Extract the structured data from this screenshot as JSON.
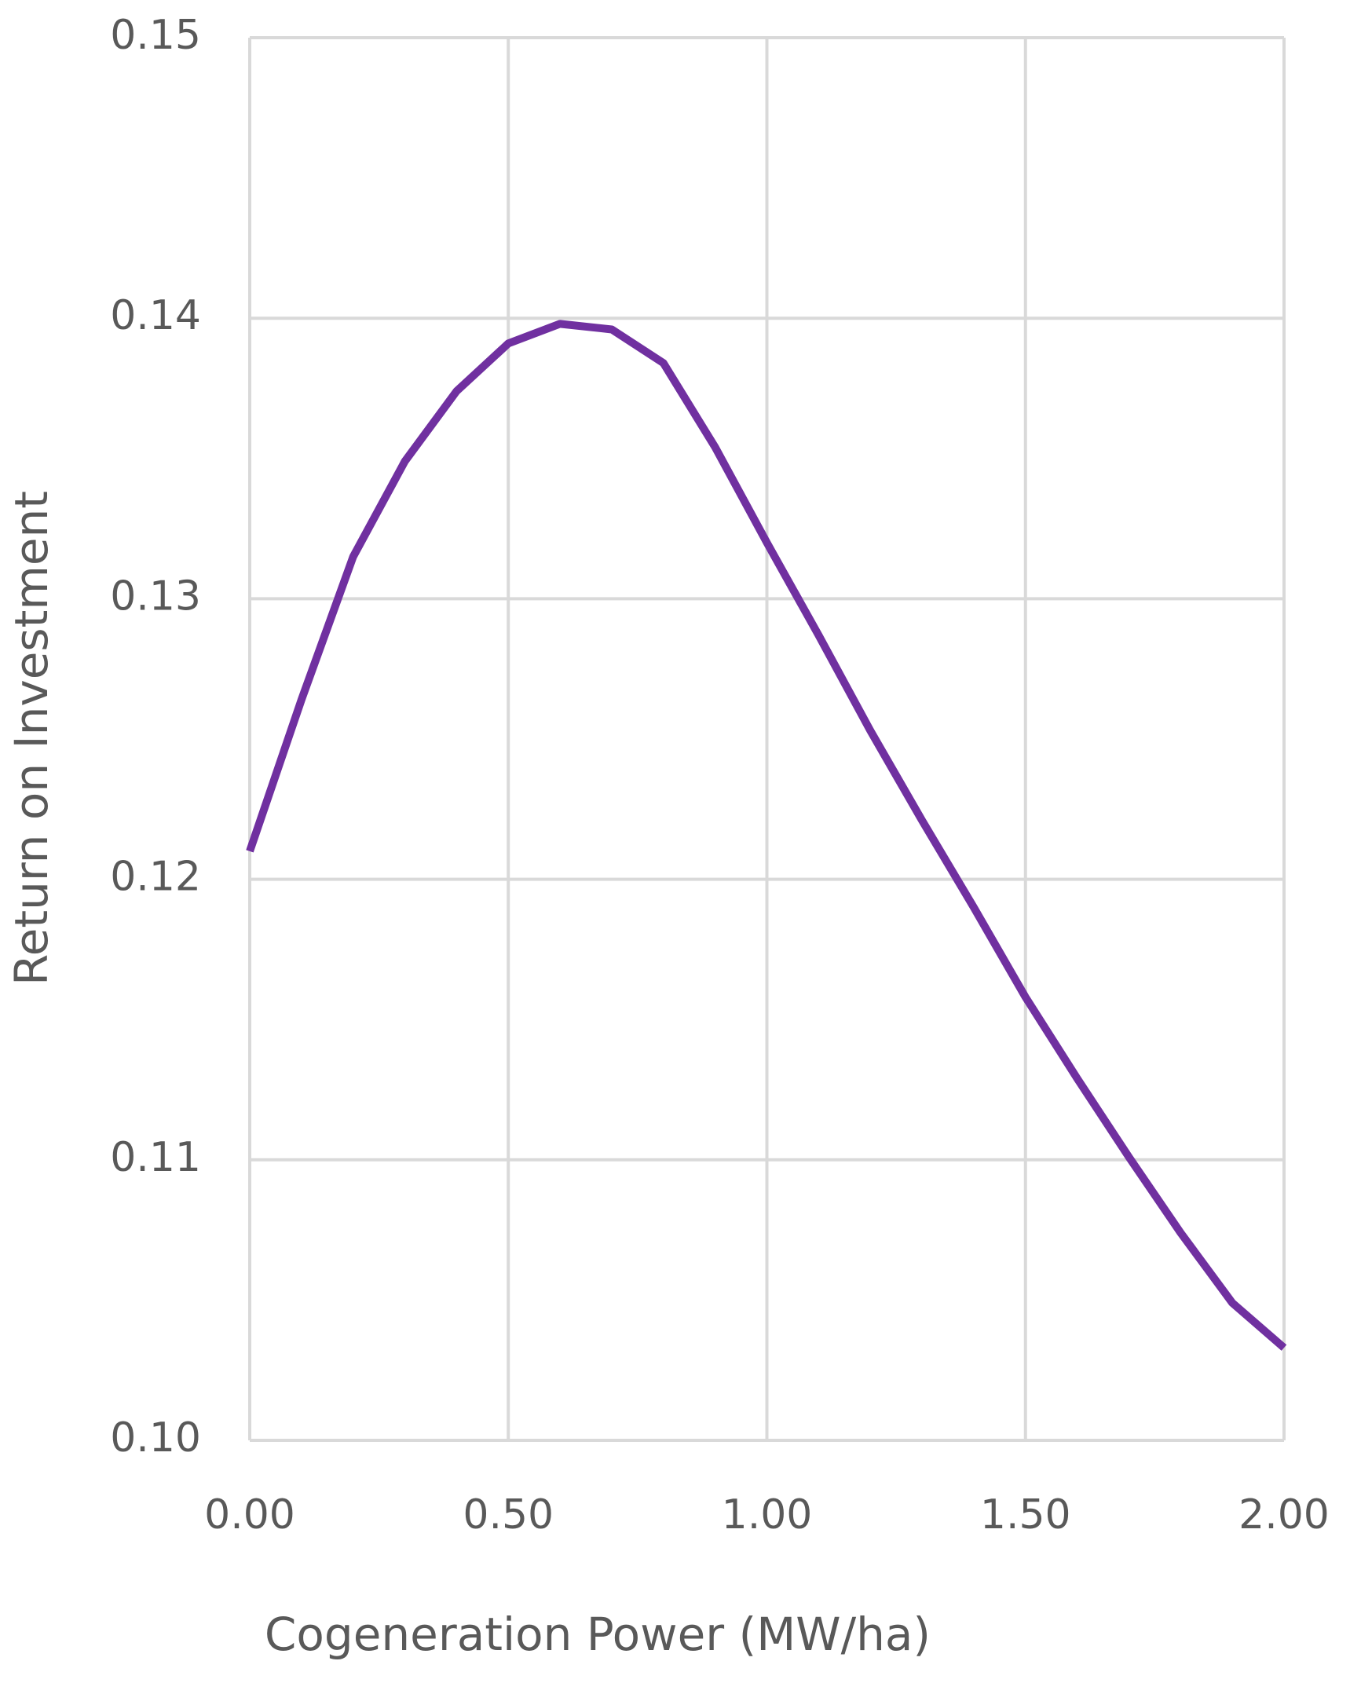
{
  "chart_data": {
    "type": "line",
    "x_label": "Cogeneration Power (MW/ha)",
    "y_label": "Return on Investment",
    "x": [
      0,
      0.1,
      0.2,
      0.3,
      0.4,
      0.5,
      0.6,
      0.7,
      0.8,
      0.9,
      1.0,
      1.1,
      1.2,
      1.3,
      1.4,
      1.5,
      1.6,
      1.7,
      1.8,
      1.9,
      2.0
    ],
    "series": [
      {
        "color": "#7030a0",
        "values": [
          0.121,
          0.1264,
          0.1315,
          0.1349,
          0.1374,
          0.1391,
          0.1398,
          0.1396,
          0.1384,
          0.1354,
          0.132,
          0.1287,
          0.1253,
          0.1221,
          0.119,
          0.1158,
          0.1129,
          0.1101,
          0.1074,
          0.1049,
          0.1033
        ]
      }
    ],
    "xlim": [
      0,
      2
    ],
    "xticks": [
      {
        "value": 0,
        "label": "0.00"
      },
      {
        "value": 0.5,
        "label": "0.50"
      },
      {
        "value": 1,
        "label": "1.00"
      },
      {
        "value": 1.5,
        "label": "1.50"
      },
      {
        "value": 2,
        "label": "2.00"
      }
    ],
    "ylim": [
      0.1,
      0.15
    ],
    "yticks": [
      {
        "value": 0.1,
        "label": "0.10"
      },
      0.11,
      0.12,
      0.13,
      0.14,
      0.15
    ],
    "grid": true
  }
}
